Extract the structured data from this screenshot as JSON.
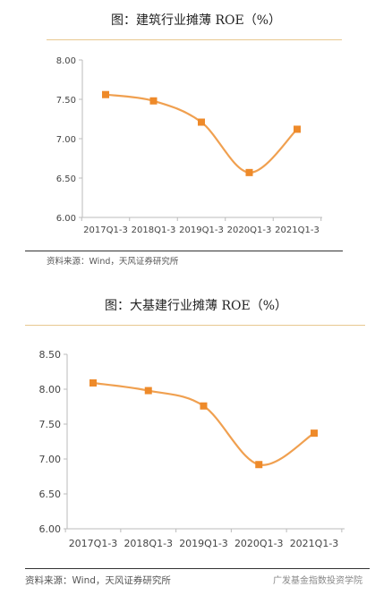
{
  "chart_data": [
    {
      "type": "line",
      "title": "图：建筑行业摊薄 ROE（%）",
      "categories": [
        "2017Q1-3",
        "2018Q1-3",
        "2019Q1-3",
        "2020Q1-3",
        "2021Q1-3"
      ],
      "values": [
        7.56,
        7.48,
        7.21,
        6.57,
        7.12
      ],
      "ylim": [
        6.0,
        8.0
      ],
      "yticks": [
        "8.00",
        "7.50",
        "7.00",
        "6.50",
        "6.00"
      ],
      "xlabel": "",
      "ylabel": "",
      "grid": false,
      "source": "资料来源：Wind，天风证券研究所",
      "color": "#f0a050",
      "marker_color": "#ee8a2a"
    },
    {
      "type": "line",
      "title": "图：大基建行业摊薄 ROE（%）",
      "categories": [
        "2017Q1-3",
        "2018Q1-3",
        "2019Q1-3",
        "2020Q1-3",
        "2021Q1-3"
      ],
      "values": [
        8.09,
        7.98,
        7.76,
        6.92,
        7.37
      ],
      "ylim": [
        6.0,
        8.5
      ],
      "yticks": [
        "8.50",
        "8.00",
        "7.50",
        "7.00",
        "6.50",
        "6.00"
      ],
      "xlabel": "",
      "ylabel": "",
      "grid": false,
      "source": "资料来源：Wind，天风证券研究所",
      "color": "#f0a050",
      "marker_color": "#ee8a2a"
    }
  ],
  "watermark": "广发基金指数投资学院"
}
